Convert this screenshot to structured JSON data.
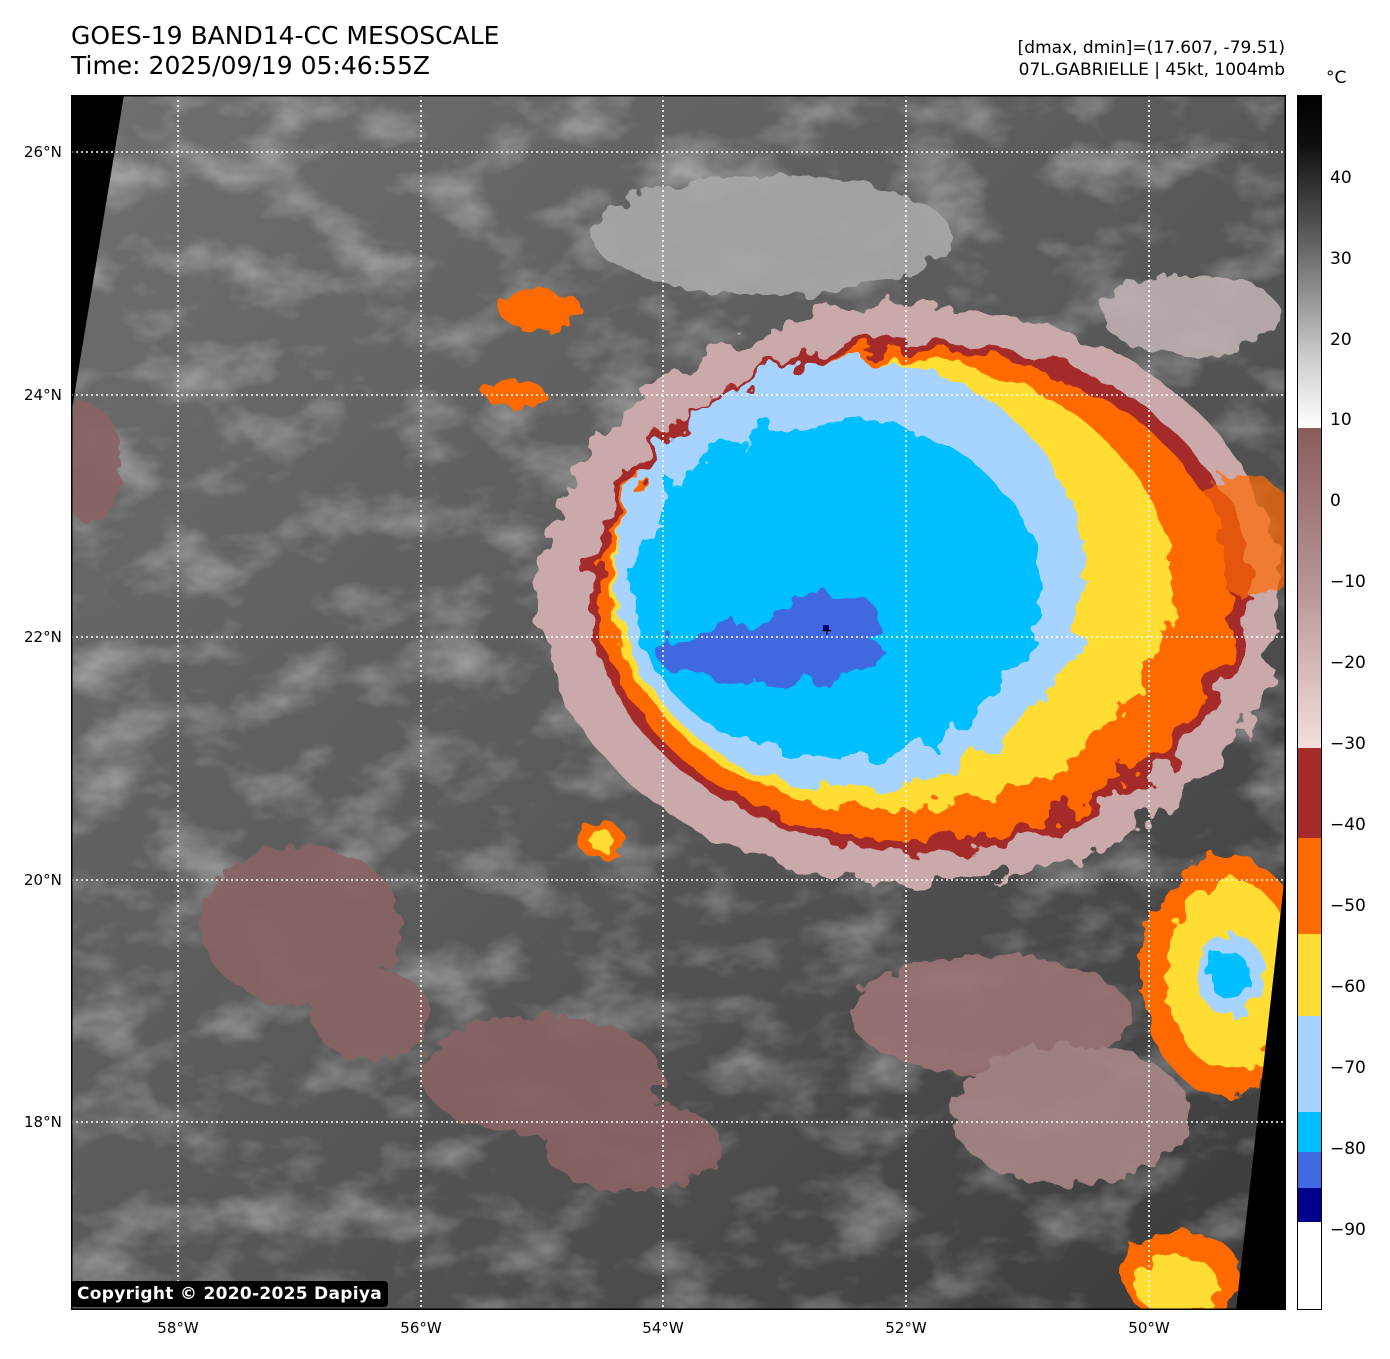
{
  "header": {
    "title_line1": "GOES-19 BAND14-CC MESOSCALE",
    "title_line2": "Time: 2025/09/19 05:46:55Z",
    "info_line1": "[dmax, dmin]=(17.607, -79.51)",
    "info_line2": "07L.GABRIELLE | 45kt, 1004mb"
  },
  "map": {
    "lat_labels": [
      "26°N",
      "24°N",
      "22°N",
      "20°N",
      "18°N"
    ],
    "lon_labels": [
      "58°W",
      "56°W",
      "54°W",
      "52°W",
      "50°W"
    ],
    "gridlines": "dotted white",
    "storm_center_marker": "+",
    "copyright": "Copyright © 2020-2025 Dapiya"
  },
  "colorbar": {
    "unit": "°C",
    "ticks": [
      "40",
      "30",
      "20",
      "10",
      "0",
      "−10",
      "−20",
      "−30",
      "−40",
      "−50",
      "−60",
      "−70",
      "−80",
      "−90"
    ],
    "colors": {
      "above_10": "grayscale black-to-white",
      "10_to_-30": "#8a5c5c → #f4dede",
      "-30_to_-40": "#a52a2a",
      "-40_to_-50": "#ff6a00",
      "-50_to_-60": "#ffdd33",
      "-60_to_-70": "#a6d3ff",
      "-70_to_-80": "#00bfff",
      "-80_to_-85": "#4169e1",
      "-85_to_-89": "#00008b",
      "below_-89": "#ffffff"
    }
  }
}
